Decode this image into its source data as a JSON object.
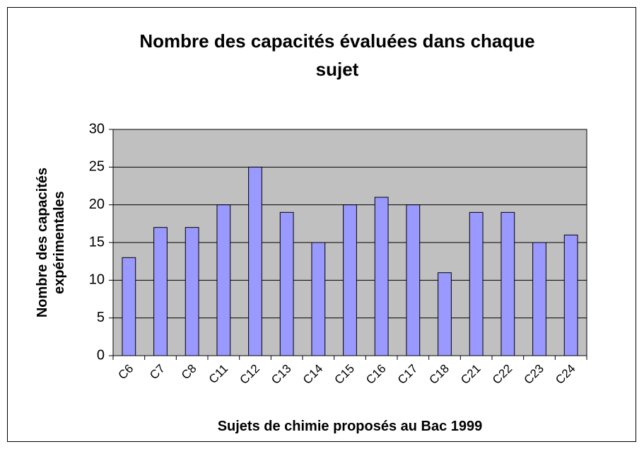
{
  "chart_data": {
    "type": "bar",
    "title": "Nombre des capacités évaluées dans chaque sujet",
    "x_label": "Sujets de chimie proposés au Bac 1999",
    "y_label": "Nombre des capacités expérimentales",
    "categories": [
      "C6",
      "C7",
      "C8",
      "C11",
      "C12",
      "C13",
      "C14",
      "C15",
      "C16",
      "C17",
      "C18",
      "C21",
      "C22",
      "C23",
      "C24"
    ],
    "values": [
      13,
      17,
      17,
      20,
      25,
      19,
      15,
      20,
      21,
      20,
      11,
      19,
      19,
      15,
      16
    ],
    "color": "#9999ff",
    "ylim": [
      0,
      30
    ],
    "yticks": [
      0,
      5,
      10,
      15,
      20,
      25,
      30
    ],
    "grid": true
  }
}
